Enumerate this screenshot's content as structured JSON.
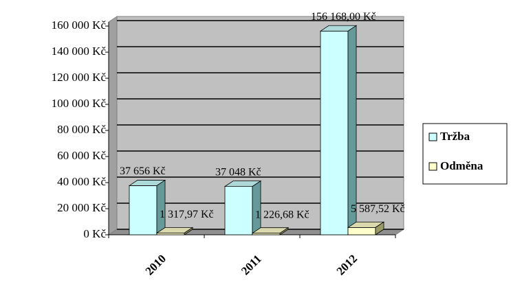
{
  "chart_data": {
    "type": "bar3d",
    "categories": [
      "2010",
      "2011",
      "2012"
    ],
    "series": [
      {
        "name": "Tržba",
        "color": "#ccffff",
        "values": [
          37656,
          37048,
          156168
        ],
        "value_labels": [
          "37 656 Kč",
          "37 048 Kč",
          "156 168,00 Kč"
        ]
      },
      {
        "name": "Odměna",
        "color": "#ffffcc",
        "values": [
          1317.97,
          1226.68,
          5587.52
        ],
        "value_labels": [
          "1 317,97 Kč",
          "1 226,68 Kč",
          "5 587,52 Kč"
        ]
      }
    ],
    "ylim": [
      0,
      160000
    ],
    "yticks": [
      {
        "value": 0,
        "label": "0 Kč"
      },
      {
        "value": 20000,
        "label": "20 000 Kč"
      },
      {
        "value": 40000,
        "label": "40 000 Kč"
      },
      {
        "value": 60000,
        "label": "60 000 Kč"
      },
      {
        "value": 80000,
        "label": "80 000 Kč"
      },
      {
        "value": 100000,
        "label": "100 000 Kč"
      },
      {
        "value": 120000,
        "label": "120 000 Kč"
      },
      {
        "value": 140000,
        "label": "140 000 Kč"
      },
      {
        "value": 160000,
        "label": "160 000 Kč"
      }
    ],
    "grid": true,
    "legend": "right"
  }
}
